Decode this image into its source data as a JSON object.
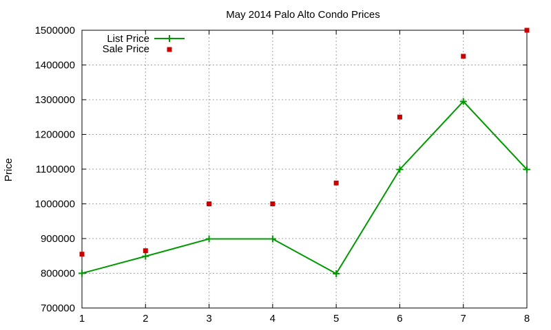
{
  "chart_data": {
    "type": "line",
    "title": "May 2014 Palo Alto Condo Prices",
    "xlabel": "",
    "ylabel": "Price",
    "x": [
      1,
      2,
      3,
      4,
      5,
      6,
      7,
      8
    ],
    "xlim": [
      1,
      8
    ],
    "ylim": [
      700000,
      1500000
    ],
    "xticks": [
      1,
      2,
      3,
      4,
      5,
      6,
      7,
      8
    ],
    "yticks": [
      700000,
      800000,
      900000,
      1000000,
      1100000,
      1200000,
      1300000,
      1400000,
      1500000
    ],
    "grid": true,
    "legend_position": "top-left",
    "series": [
      {
        "name": "List Price",
        "style": "lines+points",
        "marker": "plus",
        "color": "#009900",
        "values": [
          800000,
          849000,
          899000,
          899000,
          799000,
          1099000,
          1295000,
          1099000
        ]
      },
      {
        "name": "Sale Price",
        "style": "points",
        "marker": "square",
        "color": "#cc0000",
        "values": [
          855000,
          865000,
          1000000,
          1000000,
          1060000,
          1250000,
          1425000,
          1500000
        ]
      }
    ]
  }
}
